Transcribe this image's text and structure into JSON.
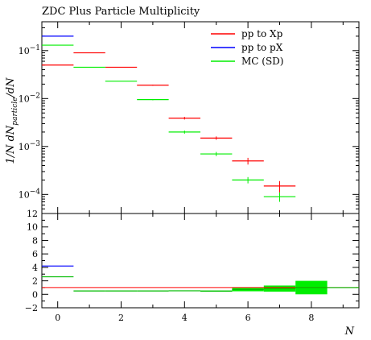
{
  "chart_data": {
    "type": "scatter",
    "title": "ZDC Plus Particle Multiplicity",
    "xlabel": "N",
    "ylabel": "1/N dN_particle/dN",
    "ylabel_parts": {
      "main": "1/N dN",
      "sub": "particle",
      "tail": "/dN"
    },
    "xlim": [
      -0.5,
      9.5
    ],
    "ylim_main": [
      4e-05,
      0.4
    ],
    "yscale_main": "log",
    "ylim_ratio": [
      -2,
      12
    ],
    "x_tick_labels": [
      "0",
      "2",
      "4",
      "6",
      "8"
    ],
    "main_tick_labels": [
      {
        "value": 0.1,
        "base": "10",
        "exp": "−1"
      },
      {
        "value": 0.01,
        "base": "10",
        "exp": "−2"
      },
      {
        "value": 0.001,
        "base": "10",
        "exp": "−3"
      },
      {
        "value": 0.0001,
        "base": "10",
        "exp": "−4"
      }
    ],
    "ratio_tick_labels": [
      "12",
      "10",
      "8",
      "6",
      "4",
      "2",
      "0",
      "−2"
    ],
    "legend_position": "top-right",
    "series": [
      {
        "name": "pp to Xp",
        "color": "#ff0000",
        "points": [
          {
            "x": 0,
            "y": 0.05,
            "err": 0
          },
          {
            "x": 1,
            "y": 0.09,
            "err": 0
          },
          {
            "x": 2,
            "y": 0.045,
            "err": 0
          },
          {
            "x": 3,
            "y": 0.019,
            "err": 0.0005
          },
          {
            "x": 4,
            "y": 0.0039,
            "err": 0.00025
          },
          {
            "x": 5,
            "y": 0.0015,
            "err": 0.00012
          },
          {
            "x": 6,
            "y": 0.0005,
            "err": 8e-05
          },
          {
            "x": 7,
            "y": 0.00015,
            "err": 4e-05
          }
        ],
        "ratio": [
          {
            "x": 0,
            "y": 1
          },
          {
            "x": 1,
            "y": 1
          },
          {
            "x": 2,
            "y": 1
          },
          {
            "x": 3,
            "y": 1
          },
          {
            "x": 4,
            "y": 1
          },
          {
            "x": 5,
            "y": 1
          },
          {
            "x": 6,
            "y": 1
          },
          {
            "x": 7,
            "y": 1
          }
        ]
      },
      {
        "name": "pp to pX",
        "color": "#0000ff",
        "points": [
          {
            "x": 0,
            "y": 0.2,
            "err": 0
          }
        ],
        "ratio": [
          {
            "x": 0,
            "y": 4.2
          }
        ]
      },
      {
        "name": "MC (SD)",
        "color": "#00ee00",
        "points": [
          {
            "x": 0,
            "y": 0.13,
            "err": 0
          },
          {
            "x": 1,
            "y": 0.045,
            "err": 0
          },
          {
            "x": 2,
            "y": 0.023,
            "err": 0
          },
          {
            "x": 3,
            "y": 0.0095,
            "err": 0.0003
          },
          {
            "x": 4,
            "y": 0.002,
            "err": 0.00015
          },
          {
            "x": 5,
            "y": 0.0007,
            "err": 7e-05
          },
          {
            "x": 6,
            "y": 0.0002,
            "err": 3e-05
          },
          {
            "x": 7,
            "y": 9e-05,
            "err": 2e-05
          }
        ],
        "ratio": [
          {
            "x": 0,
            "y": 2.6,
            "err": 0
          },
          {
            "x": 1,
            "y": 0.5,
            "err": 0
          },
          {
            "x": 2,
            "y": 0.5,
            "err": 0
          },
          {
            "x": 3,
            "y": 0.5,
            "err": 0
          },
          {
            "x": 4,
            "y": 0.52,
            "err": 0.05
          },
          {
            "x": 5,
            "y": 0.48,
            "err": 0.08
          },
          {
            "x": 6,
            "y": 0.7,
            "err": 0.25
          },
          {
            "x": 7,
            "y": 0.85,
            "err": 0.45
          },
          {
            "x": 8,
            "y": 1.0,
            "err": 1.0
          },
          {
            "x": 9,
            "y": 1.0,
            "err": 0
          }
        ]
      }
    ]
  }
}
